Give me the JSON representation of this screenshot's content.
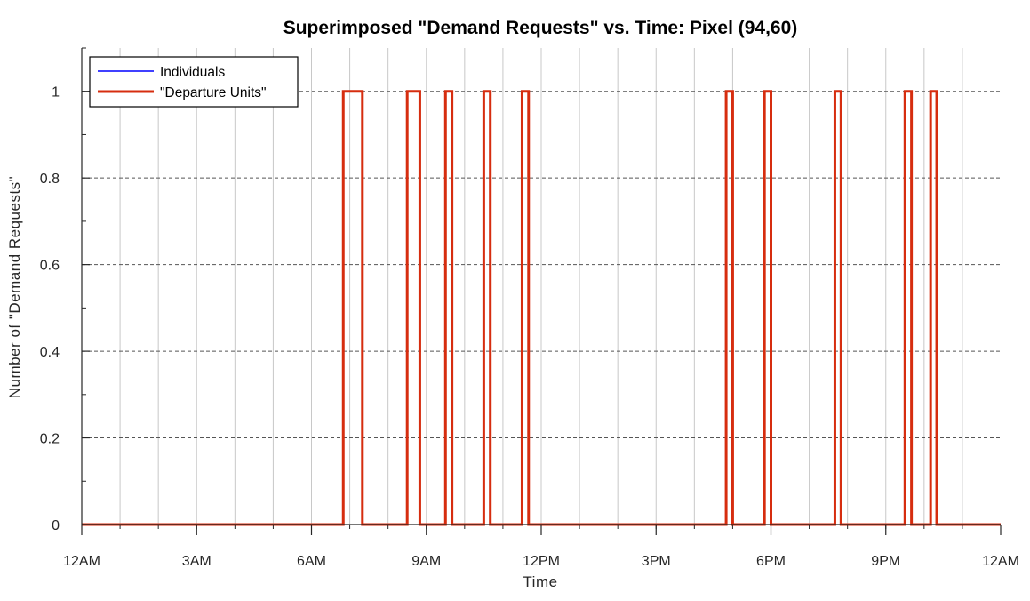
{
  "chart_data": {
    "type": "line",
    "title": "Superimposed \"Demand Requests\" vs. Time: Pixel (94,60)",
    "xlabel": "Time",
    "ylabel": "Number of \"Demand Requests\"",
    "x_unit": "hours since midnight",
    "xlim": [
      0,
      24
    ],
    "ylim": [
      0,
      1.1
    ],
    "x_ticks": [
      0,
      3,
      6,
      9,
      12,
      15,
      18,
      21,
      24
    ],
    "x_tick_labels": [
      "12AM",
      "3AM",
      "6AM",
      "9AM",
      "12PM",
      "3PM",
      "6PM",
      "9PM",
      "12AM"
    ],
    "x_minor_grid_step": 1,
    "y_ticks": [
      0,
      0.2,
      0.4,
      0.6,
      0.8,
      1
    ],
    "y_tick_labels": [
      "0",
      "0.2",
      "0.4",
      "0.6",
      "0.8",
      "1"
    ],
    "grid": {
      "x_minor": "solid light gray, every hour",
      "y_major": "dashed dark gray"
    },
    "legend": {
      "placement": "top-left"
    },
    "series": [
      {
        "name": "Individuals",
        "color": "#0000ff",
        "line_width": "thin",
        "x": [
          0,
          6.83,
          6.83,
          7.33,
          7.33,
          8.5,
          8.5,
          8.83,
          8.83,
          9.5,
          9.5,
          9.67,
          9.67,
          10.5,
          10.5,
          10.67,
          10.67,
          11.5,
          11.5,
          11.67,
          11.67,
          16.83,
          16.83,
          17,
          17,
          17.83,
          17.83,
          18,
          18,
          19.67,
          19.67,
          19.83,
          19.83,
          21.5,
          21.5,
          21.67,
          21.67,
          22.17,
          22.17,
          22.33,
          22.33,
          24
        ],
        "y": [
          0,
          0,
          1,
          1,
          0,
          0,
          1,
          1,
          0,
          0,
          1,
          1,
          0,
          0,
          1,
          1,
          0,
          0,
          1,
          1,
          0,
          0,
          1,
          1,
          0,
          0,
          1,
          1,
          0,
          0,
          1,
          1,
          0,
          0,
          1,
          1,
          0,
          0,
          1,
          1,
          0,
          0
        ]
      },
      {
        "name": "\"Departure Units\"",
        "color": "#d62d0f",
        "line_width": "thick",
        "x": [
          0,
          6.83,
          6.83,
          7.33,
          7.33,
          8.5,
          8.5,
          8.83,
          8.83,
          9.5,
          9.5,
          9.67,
          9.67,
          10.5,
          10.5,
          10.67,
          10.67,
          11.5,
          11.5,
          11.67,
          11.67,
          16.83,
          16.83,
          17,
          17,
          17.83,
          17.83,
          18,
          18,
          19.67,
          19.67,
          19.83,
          19.83,
          21.5,
          21.5,
          21.67,
          21.67,
          22.17,
          22.17,
          22.33,
          22.33,
          24
        ],
        "y": [
          0,
          0,
          1,
          1,
          0,
          0,
          1,
          1,
          0,
          0,
          1,
          1,
          0,
          0,
          1,
          1,
          0,
          0,
          1,
          1,
          0,
          0,
          1,
          1,
          0,
          0,
          1,
          1,
          0,
          0,
          1,
          1,
          0,
          0,
          1,
          1,
          0,
          0,
          1,
          1,
          0,
          0
        ]
      }
    ],
    "colors": {
      "axis": "#262626",
      "minor_grid": "#c8c8c8",
      "major_grid": "#555555",
      "background": "#ffffff"
    }
  }
}
